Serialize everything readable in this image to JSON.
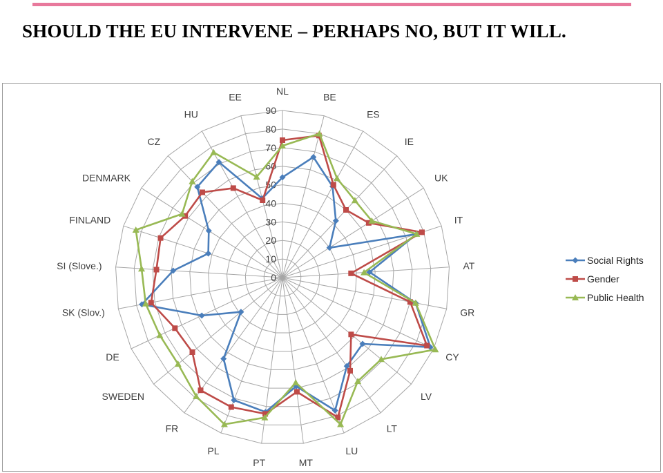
{
  "slide": {
    "title": "SHOULD THE EU INTERVENE – PERHAPS NO, BUT IT WILL.",
    "accent_color": "#e8799c"
  },
  "chart_data": {
    "type": "radar",
    "title": "",
    "categories": [
      "NL",
      "BE",
      "ES",
      "IE",
      "UK",
      "IT",
      "AT",
      "GR",
      "CY",
      "LV",
      "LT",
      "LU",
      "MT",
      "PT",
      "PL",
      "FR",
      "SWEDEN",
      "DE",
      "SK (Slov.)",
      "SI (Slove.)",
      "FINLAND",
      "DENMARK",
      "CZ",
      "HU",
      "EE"
    ],
    "rlim": [
      0,
      90
    ],
    "ticks": [
      0,
      10,
      20,
      30,
      40,
      50,
      60,
      70,
      80,
      90
    ],
    "tick_labels": [
      "0",
      "10",
      "20",
      "30",
      "40",
      "50",
      "60",
      "70",
      "80",
      "90"
    ],
    "grid": true,
    "legend_position": "right",
    "series": [
      {
        "name": "Social Rights",
        "color": "#4a7ebb",
        "marker": "diamond",
        "values": [
          54,
          67,
          56,
          42,
          30,
          76,
          47,
          73,
          88,
          56,
          59,
          77,
          59,
          73,
          71,
          54,
          29,
          48,
          77,
          59,
          42,
          47,
          67,
          71,
          44
        ]
      },
      {
        "name": "Gender",
        "color": "#be4b48",
        "marker": "square",
        "values": [
          74,
          79,
          57,
          50,
          55,
          79,
          37,
          70,
          86,
          48,
          62,
          81,
          62,
          74,
          75,
          75,
          63,
          64,
          72,
          68,
          69,
          62,
          63,
          55,
          43
        ]
      },
      {
        "name": "Public Health",
        "color": "#98b954",
        "marker": "triangle",
        "values": [
          71,
          80,
          61,
          57,
          57,
          76,
          44,
          73,
          91,
          69,
          69,
          85,
          57,
          76,
          85,
          79,
          73,
          73,
          75,
          76,
          83,
          64,
          71,
          77,
          56
        ]
      }
    ]
  }
}
